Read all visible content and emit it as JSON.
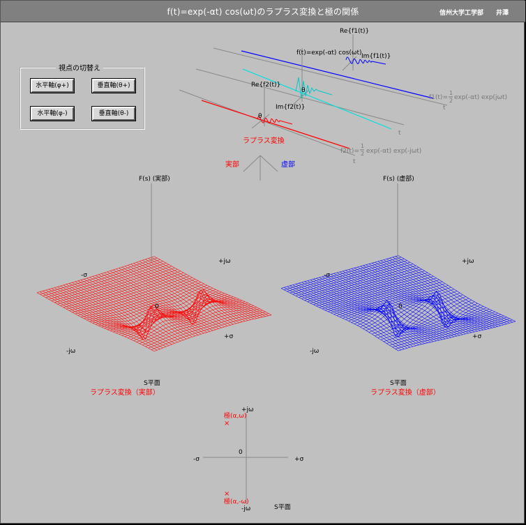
{
  "app": {
    "title": "f(t)=exp(-αt) cos(ωt)のラプラス変換と極の関係",
    "affiliation": "信州大学工学部",
    "author": "井澤"
  },
  "view_controls": {
    "group_label": "視点の切替え",
    "buttons": [
      {
        "id": "h-plus",
        "label": "水平軸(φ+)"
      },
      {
        "id": "v-plus",
        "label": "垂直軸(θ+)"
      },
      {
        "id": "h-minus",
        "label": "水平軸(φ-)"
      },
      {
        "id": "v-minus",
        "label": "垂直軸(θ-)"
      }
    ]
  },
  "time_domain": {
    "re_f1": "Re{f1(t)}",
    "im_f1": "Im{f1(t)}",
    "f_label": "f(t)=exp(-αt) cos(ωt)",
    "re_f2": "Re{f2(t)}",
    "im_f2": "Im{f2(t)}",
    "f1_prefix": "f1(t)=",
    "f1_suffix": "exp(-αt) exp(jωt)",
    "f2_prefix": "f2(t)=",
    "f2_suffix": "exp(-αt) exp(-jωt)",
    "half_num": "1",
    "half_den": "2",
    "t_label": "t",
    "theta": "θ",
    "laplace": "ラプラス変換",
    "real_part": "実部",
    "imag_part": "虚部",
    "colors": {
      "f1": "#0000ff",
      "f2": "#ff0000",
      "f": "#00e0e0"
    }
  },
  "surface_real": {
    "fs_label": "F(s) (実部)",
    "pos_jw": "+jω",
    "neg_sigma": "-σ",
    "zero": "0",
    "pos_sigma": "+σ",
    "neg_jw": "-jω",
    "s_plane": "S平面",
    "caption": "ラプラス変換（実部）",
    "color": "#ff0000"
  },
  "surface_imag": {
    "fs_label": "F(s) (虚部)",
    "pos_jw": "+jω",
    "neg_sigma": "-σ",
    "zero": "0",
    "pos_sigma": "+σ",
    "neg_jw": "-jω",
    "s_plane": "S平面",
    "caption": "ラプラス変換（虚部）",
    "color": "#0000ff"
  },
  "s_plane": {
    "pos_jw": "+jω",
    "pole_upper": "極(α,ω)",
    "pole_lower": "極(α,-ω)",
    "pole_marker": "×",
    "neg_sigma": "-σ",
    "zero": "0",
    "pos_sigma": "+σ",
    "neg_jw": "-jω",
    "caption": "S平面"
  }
}
